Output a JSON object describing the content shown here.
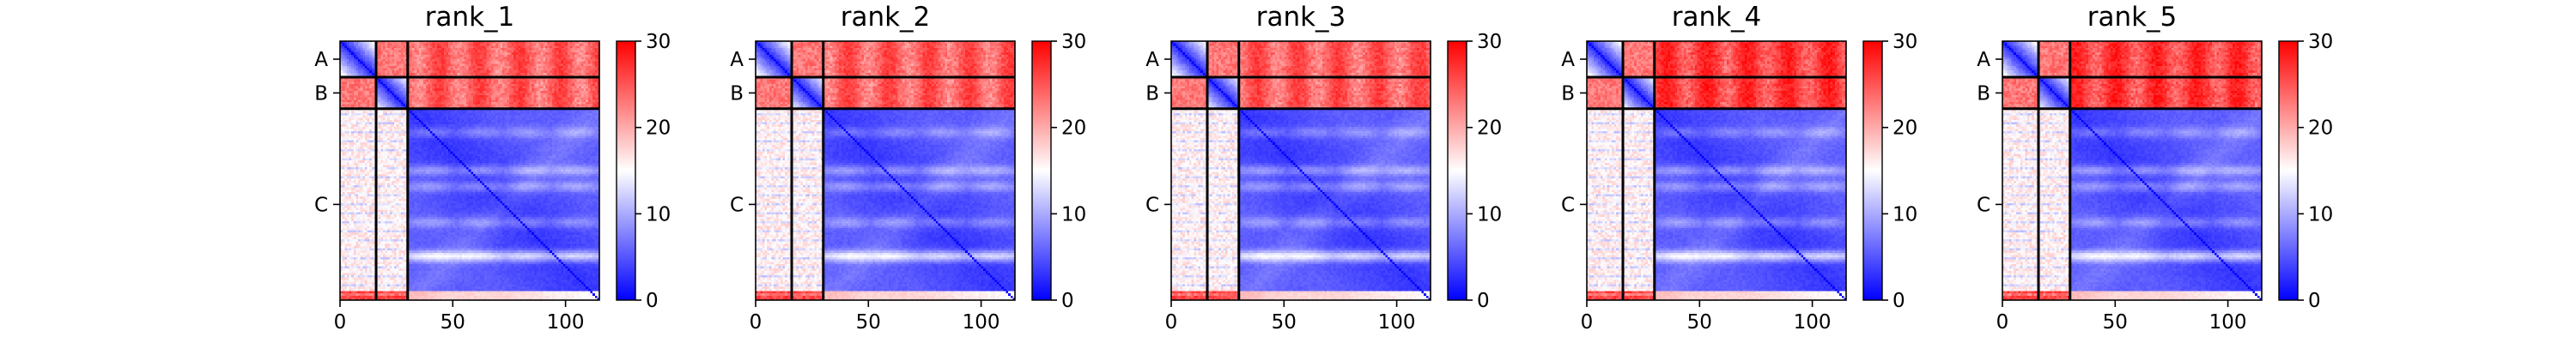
{
  "chart_data": [
    {
      "type": "heatmap",
      "title": "rank_1",
      "x_ticks": [
        "0",
        "50",
        "100"
      ],
      "x_range": [
        0,
        115
      ],
      "chains": [
        {
          "label": "A",
          "start": 0,
          "end": 16
        },
        {
          "label": "B",
          "start": 16,
          "end": 30
        },
        {
          "label": "C",
          "start": 30,
          "end": 115
        }
      ],
      "colorbar": {
        "min": 0,
        "max": 30,
        "ticks": [
          "0",
          "10",
          "20",
          "30"
        ],
        "colors": [
          "#0000ff",
          "#ffffff",
          "#ff0000"
        ]
      },
      "interchain_level": 25
    },
    {
      "type": "heatmap",
      "title": "rank_2",
      "x_ticks": [
        "0",
        "50",
        "100"
      ],
      "x_range": [
        0,
        115
      ],
      "chains": [
        {
          "label": "A",
          "start": 0,
          "end": 16
        },
        {
          "label": "B",
          "start": 16,
          "end": 30
        },
        {
          "label": "C",
          "start": 30,
          "end": 115
        }
      ],
      "colorbar": {
        "min": 0,
        "max": 30,
        "ticks": [
          "0",
          "10",
          "20",
          "30"
        ],
        "colors": [
          "#0000ff",
          "#ffffff",
          "#ff0000"
        ]
      },
      "interchain_level": 25
    },
    {
      "type": "heatmap",
      "title": "rank_3",
      "x_ticks": [
        "0",
        "50",
        "100"
      ],
      "x_range": [
        0,
        115
      ],
      "chains": [
        {
          "label": "A",
          "start": 0,
          "end": 16
        },
        {
          "label": "B",
          "start": 16,
          "end": 30
        },
        {
          "label": "C",
          "start": 30,
          "end": 115
        }
      ],
      "colorbar": {
        "min": 0,
        "max": 30,
        "ticks": [
          "0",
          "10",
          "20",
          "30"
        ],
        "colors": [
          "#0000ff",
          "#ffffff",
          "#ff0000"
        ]
      },
      "interchain_level": 25
    },
    {
      "type": "heatmap",
      "title": "rank_4",
      "x_ticks": [
        "0",
        "50",
        "100"
      ],
      "x_range": [
        0,
        115
      ],
      "chains": [
        {
          "label": "A",
          "start": 0,
          "end": 16
        },
        {
          "label": "B",
          "start": 16,
          "end": 30
        },
        {
          "label": "C",
          "start": 30,
          "end": 115
        }
      ],
      "colorbar": {
        "min": 0,
        "max": 30,
        "ticks": [
          "0",
          "10",
          "20",
          "30"
        ],
        "colors": [
          "#0000ff",
          "#ffffff",
          "#ff0000"
        ]
      },
      "interchain_level": 27
    },
    {
      "type": "heatmap",
      "title": "rank_5",
      "x_ticks": [
        "0",
        "50",
        "100"
      ],
      "x_range": [
        0,
        115
      ],
      "chains": [
        {
          "label": "A",
          "start": 0,
          "end": 16
        },
        {
          "label": "B",
          "start": 16,
          "end": 30
        },
        {
          "label": "C",
          "start": 30,
          "end": 115
        }
      ],
      "colorbar": {
        "min": 0,
        "max": 30,
        "ticks": [
          "0",
          "10",
          "20",
          "30"
        ],
        "colors": [
          "#0000ff",
          "#ffffff",
          "#ff0000"
        ]
      },
      "interchain_level": 27
    }
  ]
}
